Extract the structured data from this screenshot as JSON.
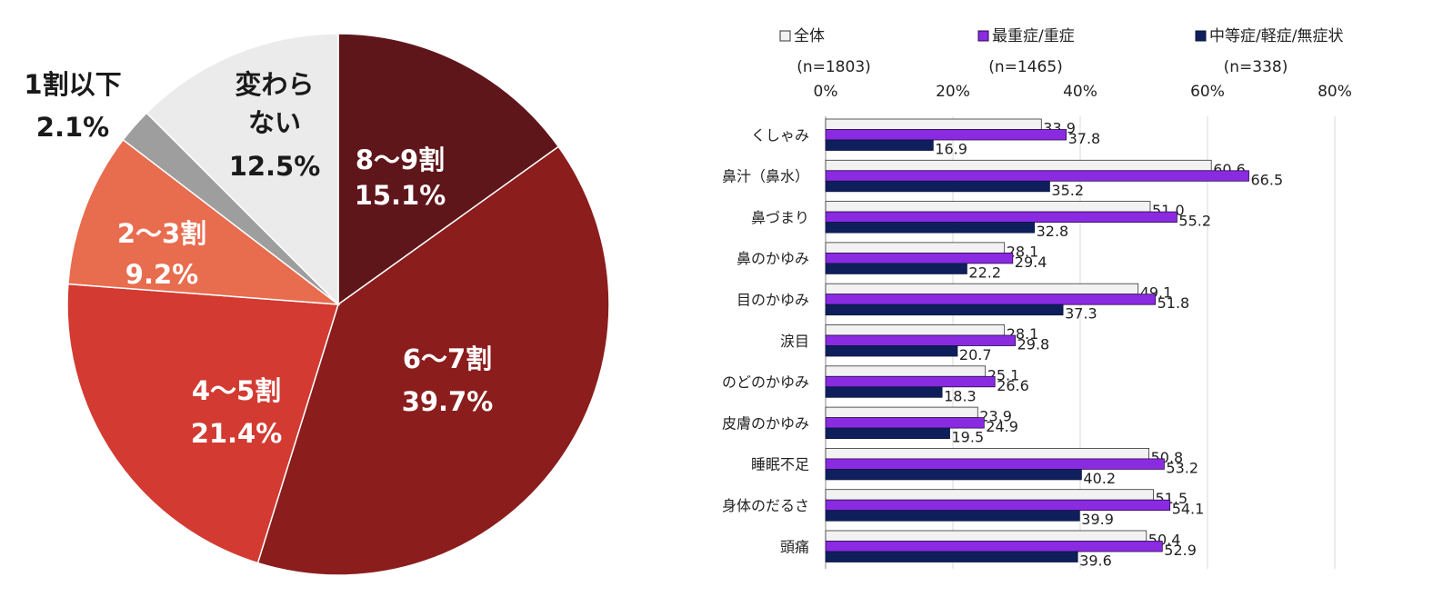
{
  "chart_data": [
    {
      "type": "pie",
      "slices": [
        {
          "label": "8～9割",
          "value": 15.1,
          "display": "15.1%",
          "color": "#5f161b",
          "label_color": "#ffffff"
        },
        {
          "label": "6～7割",
          "value": 39.7,
          "display": "39.7%",
          "color": "#8b1d1d",
          "label_color": "#ffffff"
        },
        {
          "label": "4～5割",
          "value": 21.4,
          "display": "21.4%",
          "color": "#d33a32",
          "label_color": "#ffffff"
        },
        {
          "label": "2～3割",
          "value": 9.2,
          "display": "9.2%",
          "color": "#e86c4e",
          "label_color": "#ffffff"
        },
        {
          "label": "1割以下",
          "value": 2.1,
          "display": "2.1%",
          "color": "#9e9e9e",
          "label_color": "#1a1a1a"
        },
        {
          "label": "変わら\nない",
          "value": 12.5,
          "display": "12.5%",
          "color": "#ebebeb",
          "label_color": "#1a1a1a"
        }
      ]
    },
    {
      "type": "bar",
      "orientation": "horizontal",
      "categories": [
        "くしゃみ",
        "鼻汁（鼻水）",
        "鼻づまり",
        "鼻のかゆみ",
        "目のかゆみ",
        "涙目",
        "のどのかゆみ",
        "皮膚のかゆみ",
        "睡眠不足",
        "身体のだるさ",
        "頭痛"
      ],
      "series": [
        {
          "name": "全体",
          "n": "(n=1803)",
          "color": "#f2f2f2",
          "stroke": "#333333",
          "values": [
            33.9,
            60.6,
            51.0,
            28.1,
            49.1,
            28.1,
            25.1,
            23.9,
            50.8,
            51.5,
            50.4
          ]
        },
        {
          "name": "最重症/重症",
          "n": "(n=1465)",
          "color": "#8a2be2",
          "stroke": "#2a0a4a",
          "values": [
            37.8,
            66.5,
            55.2,
            29.4,
            51.8,
            29.8,
            26.6,
            24.9,
            53.2,
            54.1,
            52.9
          ]
        },
        {
          "name": "中等症/軽症/無症状",
          "n": "(n=338)",
          "color": "#0f1f5c",
          "stroke": "#0a1440",
          "values": [
            16.9,
            35.2,
            32.8,
            22.2,
            37.3,
            20.7,
            18.3,
            19.5,
            40.2,
            39.9,
            39.6
          ]
        }
      ],
      "x_ticks": [
        "0%",
        "20%",
        "40%",
        "60%",
        "80%"
      ],
      "xlim": [
        0,
        80
      ],
      "grid": true,
      "legend_position": "top"
    }
  ]
}
